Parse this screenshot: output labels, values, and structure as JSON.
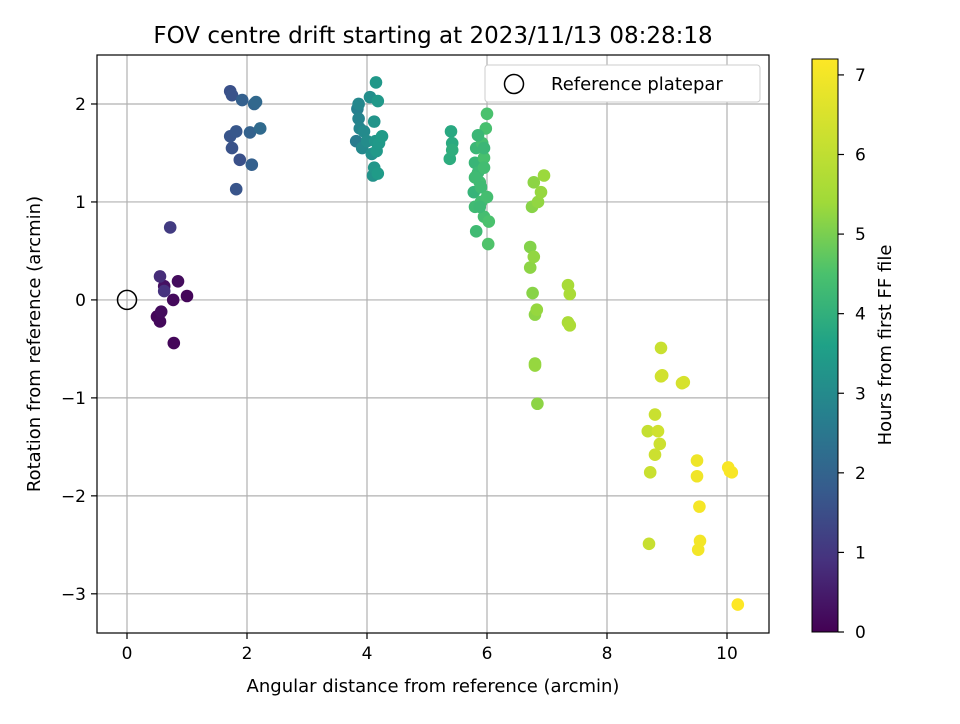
{
  "chart_data": {
    "type": "scatter",
    "title": "FOV centre drift starting at 2023/11/13 08:28:18",
    "xlabel": "Angular distance from reference (arcmin)",
    "ylabel": "Rotation from reference (arcmin)",
    "xlim": [
      -0.5,
      10.7
    ],
    "ylim": [
      -3.4,
      2.5
    ],
    "xticks": [
      0,
      2,
      4,
      6,
      8,
      10
    ],
    "yticks": [
      -3,
      -2,
      -1,
      0,
      1,
      2
    ],
    "xtick_labels": [
      "0",
      "2",
      "4",
      "6",
      "8",
      "10"
    ],
    "ytick_labels": [
      "−3",
      "−2",
      "−1",
      "0",
      "1",
      "2"
    ],
    "grid": true,
    "legend": {
      "position": "top-right",
      "entries": [
        "Reference platepar"
      ]
    },
    "colormap": "viridis",
    "colorbar": {
      "label": "Hours from first FF file",
      "range": [
        0,
        7.2
      ],
      "ticks": [
        0,
        1,
        2,
        3,
        4,
        5,
        6,
        7
      ],
      "tick_labels": [
        "0",
        "1",
        "2",
        "3",
        "4",
        "5",
        "6",
        "7"
      ]
    },
    "reference_point": {
      "x": 0,
      "y": 0
    },
    "points": [
      [
        0.5,
        -0.17,
        0.1
      ],
      [
        0.55,
        -0.22,
        0.15
      ],
      [
        0.57,
        -0.12,
        0.2
      ],
      [
        0.78,
        -0.44,
        0.1
      ],
      [
        0.77,
        0.0,
        0.15
      ],
      [
        1.0,
        0.04,
        0.1
      ],
      [
        0.85,
        0.19,
        0.2
      ],
      [
        0.62,
        0.14,
        0.3
      ],
      [
        0.55,
        0.24,
        0.8
      ],
      [
        0.62,
        0.09,
        0.9
      ],
      [
        0.72,
        0.74,
        1.1
      ],
      [
        1.72,
        2.13,
        1.55
      ],
      [
        1.75,
        2.09,
        1.6
      ],
      [
        1.72,
        1.67,
        1.65
      ],
      [
        1.75,
        1.55,
        1.6
      ],
      [
        1.82,
        1.72,
        1.7
      ],
      [
        1.88,
        1.43,
        1.55
      ],
      [
        1.82,
        1.13,
        1.65
      ],
      [
        1.92,
        2.04,
        1.9
      ],
      [
        2.05,
        1.71,
        1.95
      ],
      [
        2.08,
        1.38,
        1.9
      ],
      [
        2.12,
        2.0,
        2.05
      ],
      [
        2.15,
        2.02,
        2.1
      ],
      [
        2.22,
        1.75,
        2.15
      ],
      [
        3.82,
        1.62,
        2.6
      ],
      [
        3.84,
        1.95,
        2.7
      ],
      [
        3.86,
        1.85,
        2.8
      ],
      [
        3.86,
        2.0,
        2.9
      ],
      [
        3.88,
        1.75,
        2.85
      ],
      [
        3.92,
        1.55,
        2.95
      ],
      [
        3.95,
        1.72,
        3.0
      ],
      [
        4.0,
        1.62,
        3.05
      ],
      [
        4.05,
        2.07,
        3.1
      ],
      [
        4.08,
        1.49,
        3.15
      ],
      [
        4.1,
        1.27,
        3.2
      ],
      [
        4.12,
        1.82,
        3.25
      ],
      [
        4.12,
        1.35,
        3.3
      ],
      [
        4.14,
        1.62,
        3.3
      ],
      [
        4.15,
        2.22,
        3.35
      ],
      [
        4.16,
        1.52,
        3.4
      ],
      [
        4.18,
        2.03,
        3.35
      ],
      [
        4.2,
        1.6,
        3.4
      ],
      [
        4.18,
        1.29,
        3.45
      ],
      [
        4.25,
        1.67,
        3.45
      ],
      [
        5.4,
        1.72,
        3.8
      ],
      [
        5.42,
        1.6,
        3.85
      ],
      [
        5.38,
        1.44,
        3.9
      ],
      [
        5.42,
        1.53,
        3.95
      ],
      [
        5.78,
        1.1,
        4.1
      ],
      [
        5.8,
        1.4,
        4.15
      ],
      [
        5.82,
        1.55,
        4.2
      ],
      [
        5.85,
        1.3,
        4.25
      ],
      [
        5.8,
        0.95,
        4.3
      ],
      [
        5.82,
        0.7,
        4.3
      ],
      [
        5.88,
        1.2,
        4.35
      ],
      [
        5.9,
        1.0,
        4.35
      ],
      [
        5.92,
        1.6,
        4.4
      ],
      [
        5.95,
        0.85,
        4.4
      ],
      [
        5.95,
        1.45,
        4.45
      ],
      [
        5.98,
        1.75,
        4.45
      ],
      [
        6.0,
        1.9,
        4.5
      ],
      [
        6.02,
        0.57,
        4.55
      ],
      [
        5.85,
        1.68,
        4.2
      ],
      [
        5.9,
        1.15,
        4.3
      ],
      [
        5.95,
        1.35,
        4.35
      ],
      [
        6.0,
        1.05,
        4.4
      ],
      [
        6.03,
        0.8,
        4.5
      ],
      [
        5.88,
        0.95,
        4.25
      ],
      [
        5.95,
        1.55,
        4.2
      ],
      [
        5.8,
        1.25,
        4.3
      ],
      [
        6.72,
        0.54,
        5.1
      ],
      [
        6.72,
        0.33,
        5.2
      ],
      [
        6.76,
        0.07,
        5.15
      ],
      [
        6.78,
        0.44,
        5.25
      ],
      [
        6.8,
        -0.15,
        5.2
      ],
      [
        6.83,
        -0.1,
        5.3
      ],
      [
        6.8,
        -0.65,
        5.25
      ],
      [
        6.8,
        -0.67,
        5.3
      ],
      [
        6.84,
        -1.06,
        5.2
      ],
      [
        6.75,
        0.95,
        5.15
      ],
      [
        6.78,
        1.2,
        5.2
      ],
      [
        6.85,
        1.0,
        5.25
      ],
      [
        6.9,
        1.1,
        5.3
      ],
      [
        6.95,
        1.27,
        5.35
      ],
      [
        7.35,
        0.15,
        5.55
      ],
      [
        7.38,
        0.06,
        5.6
      ],
      [
        7.35,
        -0.23,
        5.6
      ],
      [
        7.38,
        -0.26,
        5.65
      ],
      [
        8.68,
        -1.34,
        6.1
      ],
      [
        8.72,
        -1.76,
        6.2
      ],
      [
        8.7,
        -2.49,
        6.15
      ],
      [
        8.8,
        -1.17,
        6.2
      ],
      [
        8.8,
        -1.58,
        6.25
      ],
      [
        8.85,
        -1.34,
        6.3
      ],
      [
        8.88,
        -1.47,
        6.25
      ],
      [
        8.9,
        -0.49,
        6.2
      ],
      [
        8.9,
        -0.78,
        6.3
      ],
      [
        8.92,
        -0.77,
        6.35
      ],
      [
        9.25,
        -0.85,
        6.4
      ],
      [
        9.28,
        -0.84,
        6.45
      ],
      [
        9.5,
        -1.64,
        6.9
      ],
      [
        9.5,
        -1.8,
        6.95
      ],
      [
        9.52,
        -2.55,
        7.0
      ],
      [
        9.54,
        -2.11,
        7.05
      ],
      [
        9.55,
        -2.46,
        7.0
      ],
      [
        10.02,
        -1.71,
        7.1
      ],
      [
        10.05,
        -1.75,
        7.15
      ],
      [
        10.08,
        -1.76,
        7.1
      ],
      [
        10.18,
        -3.11,
        7.2
      ]
    ]
  }
}
